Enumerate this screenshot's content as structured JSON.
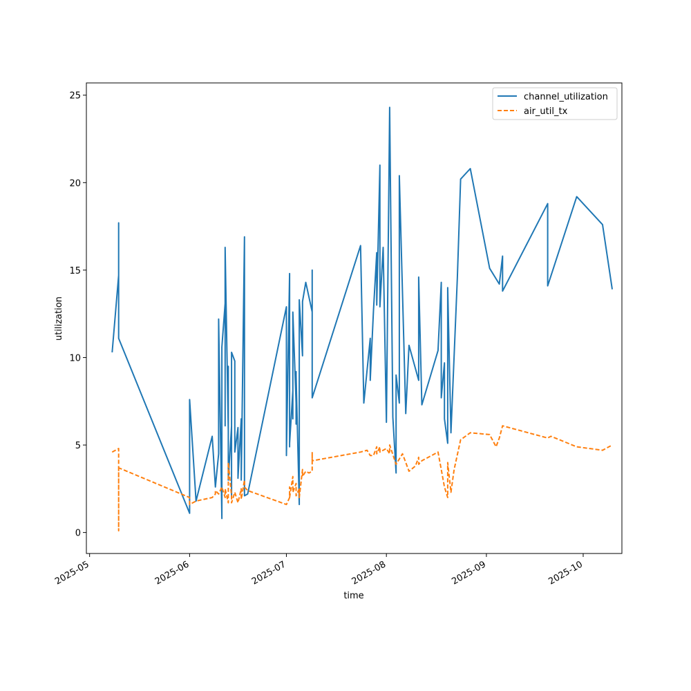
{
  "chart_data": {
    "type": "line",
    "title": "",
    "xlabel": "time",
    "ylabel": "utilization",
    "x_type": "date",
    "xlim": [
      "2025-04-30",
      "2025-10-13"
    ],
    "ylim": [
      -1.2,
      25.7
    ],
    "x_ticks": [
      "2025-05-01",
      "2025-06-01",
      "2025-07-01",
      "2025-08-01",
      "2025-09-01",
      "2025-10-01"
    ],
    "x_tick_labels": [
      "2025-05",
      "2025-06",
      "2025-07",
      "2025-08",
      "2025-09",
      "2025-10"
    ],
    "y_ticks": [
      0,
      5,
      10,
      15,
      20,
      25
    ],
    "y_tick_labels": [
      "0",
      "5",
      "10",
      "15",
      "20",
      "25"
    ],
    "grid": false,
    "legend_position": "top-right",
    "series": [
      {
        "name": "channel_utilization",
        "color": "#1f77b4",
        "style": "solid",
        "points": [
          [
            "2025-05-08",
            10.3
          ],
          [
            "2025-05-10",
            14.7
          ],
          [
            "2025-05-10",
            11.5
          ],
          [
            "2025-05-10",
            14.8
          ],
          [
            "2025-05-10",
            11.6
          ],
          [
            "2025-05-10",
            17.7
          ],
          [
            "2025-05-10",
            11.1
          ],
          [
            "2025-06-01",
            1.1
          ],
          [
            "2025-06-01",
            4.2
          ],
          [
            "2025-06-01",
            7.6
          ],
          [
            "2025-06-03",
            1.8
          ],
          [
            "2025-06-08",
            5.5
          ],
          [
            "2025-06-09",
            2.6
          ],
          [
            "2025-06-10",
            4.5
          ],
          [
            "2025-06-10",
            12.2
          ],
          [
            "2025-06-11",
            0.8
          ],
          [
            "2025-06-11",
            10.6
          ],
          [
            "2025-06-12",
            13.1
          ],
          [
            "2025-06-12",
            6.1
          ],
          [
            "2025-06-12",
            16.3
          ],
          [
            "2025-06-13",
            5.8
          ],
          [
            "2025-06-13",
            9.5
          ],
          [
            "2025-06-13",
            3.0
          ],
          [
            "2025-06-14",
            6.1
          ],
          [
            "2025-06-14",
            2.0
          ],
          [
            "2025-06-14",
            10.3
          ],
          [
            "2025-06-15",
            9.8
          ],
          [
            "2025-06-15",
            4.6
          ],
          [
            "2025-06-16",
            6.0
          ],
          [
            "2025-06-16",
            3.1
          ],
          [
            "2025-06-17",
            6.5
          ],
          [
            "2025-06-17",
            3.0
          ],
          [
            "2025-06-18",
            16.9
          ],
          [
            "2025-06-18",
            4.3
          ],
          [
            "2025-06-18",
            2.1
          ],
          [
            "2025-06-19",
            2.2
          ],
          [
            "2025-07-01",
            12.9
          ],
          [
            "2025-07-01",
            4.4
          ],
          [
            "2025-07-02",
            14.8
          ],
          [
            "2025-07-02",
            4.9
          ],
          [
            "2025-07-02",
            14.7
          ],
          [
            "2025-07-02",
            5.1
          ],
          [
            "2025-07-03",
            8.1
          ],
          [
            "2025-07-03",
            6.5
          ],
          [
            "2025-07-03",
            12.6
          ],
          [
            "2025-07-04",
            7.4
          ],
          [
            "2025-07-04",
            9.2
          ],
          [
            "2025-07-04",
            6.2
          ],
          [
            "2025-07-04",
            9.0
          ],
          [
            "2025-07-05",
            1.6
          ],
          [
            "2025-07-05",
            6.5
          ],
          [
            "2025-07-05",
            13.3
          ],
          [
            "2025-07-06",
            10.1
          ],
          [
            "2025-07-06",
            13.2
          ],
          [
            "2025-07-07",
            14.3
          ],
          [
            "2025-07-09",
            12.6
          ],
          [
            "2025-07-09",
            15.0
          ],
          [
            "2025-07-09",
            7.7
          ],
          [
            "2025-07-24",
            16.4
          ],
          [
            "2025-07-25",
            7.4
          ],
          [
            "2025-07-27",
            11.1
          ],
          [
            "2025-07-27",
            8.7
          ],
          [
            "2025-07-28",
            12.7
          ],
          [
            "2025-07-29",
            16.0
          ],
          [
            "2025-07-29",
            13.0
          ],
          [
            "2025-07-30",
            21.0
          ],
          [
            "2025-07-30",
            12.9
          ],
          [
            "2025-07-31",
            16.3
          ],
          [
            "2025-08-01",
            6.3
          ],
          [
            "2025-08-02",
            24.3
          ],
          [
            "2025-08-03",
            6.6
          ],
          [
            "2025-08-04",
            3.4
          ],
          [
            "2025-08-04",
            9.0
          ],
          [
            "2025-08-05",
            7.4
          ],
          [
            "2025-08-05",
            20.4
          ],
          [
            "2025-08-07",
            6.8
          ],
          [
            "2025-08-08",
            10.7
          ],
          [
            "2025-08-11",
            8.7
          ],
          [
            "2025-08-11",
            14.6
          ],
          [
            "2025-08-12",
            7.3
          ],
          [
            "2025-08-17",
            10.4
          ],
          [
            "2025-08-18",
            14.3
          ],
          [
            "2025-08-18",
            7.7
          ],
          [
            "2025-08-19",
            9.7
          ],
          [
            "2025-08-19",
            6.5
          ],
          [
            "2025-08-20",
            5.1
          ],
          [
            "2025-08-20",
            14.0
          ],
          [
            "2025-08-21",
            5.7
          ],
          [
            "2025-08-23",
            14.6
          ],
          [
            "2025-08-24",
            20.2
          ],
          [
            "2025-08-27",
            20.8
          ],
          [
            "2025-09-02",
            15.1
          ],
          [
            "2025-09-05",
            14.2
          ],
          [
            "2025-09-06",
            15.8
          ],
          [
            "2025-09-06",
            13.8
          ],
          [
            "2025-09-20",
            18.8
          ],
          [
            "2025-09-20",
            14.1
          ],
          [
            "2025-09-29",
            19.2
          ],
          [
            "2025-10-07",
            17.6
          ],
          [
            "2025-10-10",
            13.9
          ]
        ]
      },
      {
        "name": "air_util_tx",
        "color": "#ff7f0e",
        "style": "dashed",
        "points": [
          [
            "2025-05-08",
            4.6
          ],
          [
            "2025-05-10",
            4.8
          ],
          [
            "2025-05-10",
            3.6
          ],
          [
            "2025-05-10",
            0.1
          ],
          [
            "2025-05-10",
            3.8
          ],
          [
            "2025-05-10",
            3.7
          ],
          [
            "2025-06-01",
            2.0
          ],
          [
            "2025-06-01",
            1.6
          ],
          [
            "2025-06-03",
            1.8
          ],
          [
            "2025-06-08",
            2.0
          ],
          [
            "2025-06-09",
            2.2
          ],
          [
            "2025-06-09",
            2.4
          ],
          [
            "2025-06-10",
            2.2
          ],
          [
            "2025-06-11",
            2.6
          ],
          [
            "2025-06-12",
            2.0
          ],
          [
            "2025-06-12",
            2.5
          ],
          [
            "2025-06-13",
            1.7
          ],
          [
            "2025-06-13",
            4.0
          ],
          [
            "2025-06-14",
            2.1
          ],
          [
            "2025-06-14",
            1.7
          ],
          [
            "2025-06-15",
            2.3
          ],
          [
            "2025-06-16",
            1.7
          ],
          [
            "2025-06-17",
            2.5
          ],
          [
            "2025-06-17",
            1.9
          ],
          [
            "2025-06-18",
            3.0
          ],
          [
            "2025-06-18",
            2.6
          ],
          [
            "2025-06-19",
            2.4
          ],
          [
            "2025-07-01",
            1.6
          ],
          [
            "2025-07-02",
            2.0
          ],
          [
            "2025-07-02",
            2.6
          ],
          [
            "2025-07-02",
            2.0
          ],
          [
            "2025-07-03",
            3.2
          ],
          [
            "2025-07-03",
            2.3
          ],
          [
            "2025-07-04",
            2.8
          ],
          [
            "2025-07-04",
            2.1
          ],
          [
            "2025-07-05",
            2.5
          ],
          [
            "2025-07-05",
            2.0
          ],
          [
            "2025-07-06",
            3.6
          ],
          [
            "2025-07-06",
            3.2
          ],
          [
            "2025-07-07",
            3.5
          ],
          [
            "2025-07-08",
            3.4
          ],
          [
            "2025-07-09",
            3.5
          ],
          [
            "2025-07-09",
            4.6
          ],
          [
            "2025-07-09",
            4.1
          ],
          [
            "2025-07-24",
            4.6
          ],
          [
            "2025-07-26",
            4.7
          ],
          [
            "2025-07-27",
            4.4
          ],
          [
            "2025-07-28",
            4.4
          ],
          [
            "2025-07-29",
            4.9
          ],
          [
            "2025-07-29",
            4.5
          ],
          [
            "2025-07-30",
            4.9
          ],
          [
            "2025-07-30",
            4.6
          ],
          [
            "2025-08-01",
            4.8
          ],
          [
            "2025-08-02",
            4.5
          ],
          [
            "2025-08-02",
            5.0
          ],
          [
            "2025-08-04",
            3.9
          ],
          [
            "2025-08-06",
            4.5
          ],
          [
            "2025-08-08",
            3.5
          ],
          [
            "2025-08-10",
            3.8
          ],
          [
            "2025-08-11",
            4.3
          ],
          [
            "2025-08-11",
            3.9
          ],
          [
            "2025-08-12",
            4.1
          ],
          [
            "2025-08-17",
            4.6
          ],
          [
            "2025-08-18",
            3.6
          ],
          [
            "2025-08-19",
            2.6
          ],
          [
            "2025-08-20",
            2.0
          ],
          [
            "2025-08-20",
            4.0
          ],
          [
            "2025-08-21",
            2.3
          ],
          [
            "2025-08-22",
            3.6
          ],
          [
            "2025-08-24",
            5.3
          ],
          [
            "2025-08-27",
            5.7
          ],
          [
            "2025-09-02",
            5.6
          ],
          [
            "2025-09-04",
            4.9
          ],
          [
            "2025-09-05",
            5.4
          ],
          [
            "2025-09-06",
            6.1
          ],
          [
            "2025-09-20",
            5.4
          ],
          [
            "2025-09-21",
            5.5
          ],
          [
            "2025-09-29",
            4.9
          ],
          [
            "2025-10-07",
            4.7
          ],
          [
            "2025-10-10",
            5.0
          ]
        ]
      }
    ]
  }
}
